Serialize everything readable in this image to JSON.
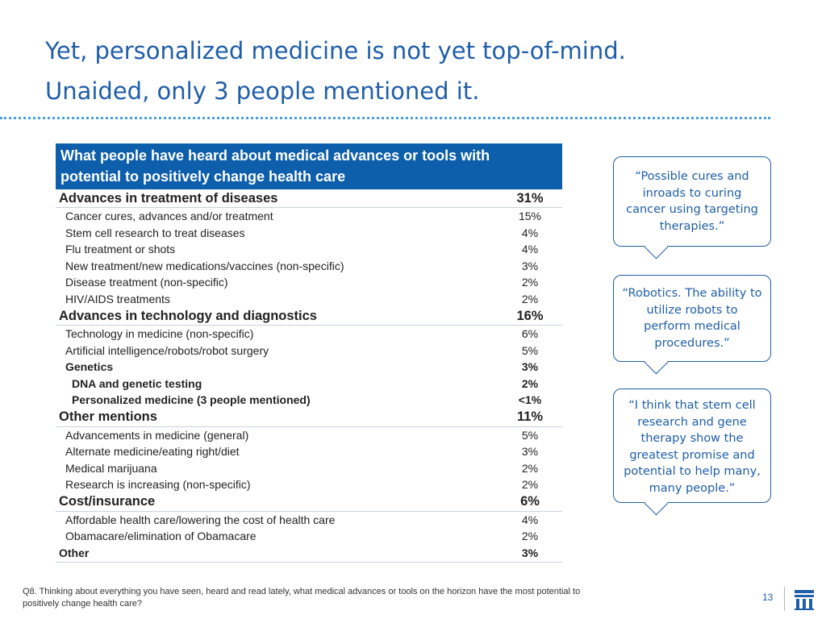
{
  "title": {
    "line1": "Yet, personalized medicine is not yet top-of-mind.",
    "line2": "Unaided, only 3 people mentioned it."
  },
  "table": {
    "header_line1": "What people have heard about medical advances or tools with",
    "header_line2": "potential to positively change health care",
    "rows": [
      {
        "label": "Advances in treatment of diseases",
        "value": "31%",
        "level": "category"
      },
      {
        "label": "Cancer cures, advances and/or treatment",
        "value": "15%",
        "level": "item"
      },
      {
        "label": "Stem cell research to treat diseases",
        "value": "4%",
        "level": "item"
      },
      {
        "label": "Flu treatment or shots",
        "value": "4%",
        "level": "item"
      },
      {
        "label": "New treatment/new medications/vaccines (non-specific)",
        "value": "3%",
        "level": "item"
      },
      {
        "label": "Disease treatment (non-specific)",
        "value": "2%",
        "level": "item"
      },
      {
        "label": "HIV/AIDS treatments",
        "value": "2%",
        "level": "item"
      },
      {
        "label": "Advances in technology and diagnostics",
        "value": "16%",
        "level": "category"
      },
      {
        "label": "Technology in medicine (non-specific)",
        "value": "6%",
        "level": "item"
      },
      {
        "label": "Artificial intelligence/robots/robot surgery",
        "value": "5%",
        "level": "item"
      },
      {
        "label": "Genetics",
        "value": "3%",
        "level": "item-bold"
      },
      {
        "label": "DNA and genetic testing",
        "value": "2%",
        "level": "subitem-bold"
      },
      {
        "label": "Personalized medicine (3 people mentioned)",
        "value": "<1%",
        "level": "subitem-bold"
      },
      {
        "label": "Other mentions",
        "value": "11%",
        "level": "category"
      },
      {
        "label": "Advancements in medicine (general)",
        "value": "5%",
        "level": "item"
      },
      {
        "label": "Alternate medicine/eating right/diet",
        "value": "3%",
        "level": "item"
      },
      {
        "label": "Medical marijuana",
        "value": "2%",
        "level": "item"
      },
      {
        "label": "Research is increasing (non-specific)",
        "value": "2%",
        "level": "item"
      },
      {
        "label": "Cost/insurance",
        "value": "6%",
        "level": "category"
      },
      {
        "label": "Affordable health care/lowering the cost of health care",
        "value": "4%",
        "level": "item"
      },
      {
        "label": "Obamacare/elimination of Obamacare",
        "value": "2%",
        "level": "item"
      },
      {
        "label": "Other",
        "value": "3%",
        "level": "other"
      }
    ]
  },
  "quotes": [
    "“Possible cures and inroads to curing cancer using targeting therapies.”",
    "“Robotics. The ability to utilize robots to perform medical procedures.”",
    "“I think that stem cell research and gene therapy show the greatest promise and potential to help many, many people.”"
  ],
  "footnote": "Q8. Thinking about everything you have seen, heard and read lately, what medical advances or tools on the horizon have the most potential to positively change health care?",
  "page_number": "13",
  "colors": {
    "title_blue": "#1f5ea8",
    "header_blue": "#0d5fac",
    "dotted_rule": "#4aa0dc"
  },
  "logo_icon": "bank-columns-logo-icon"
}
